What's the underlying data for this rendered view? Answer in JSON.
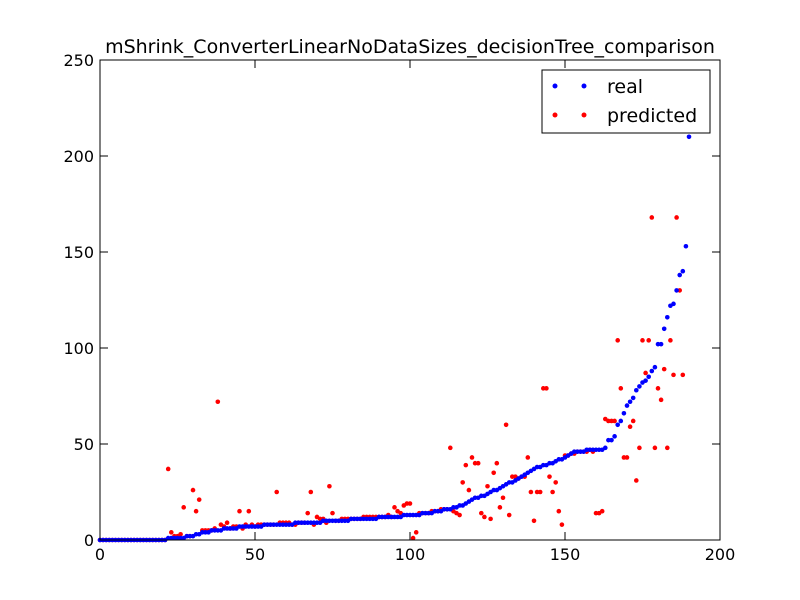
{
  "chart_data": {
    "type": "scatter",
    "title": "mShrink_ConverterLinearNoDataSizes_decisionTree_comparison",
    "xlabel": "",
    "ylabel": "",
    "xlim": [
      0,
      200
    ],
    "ylim": [
      0,
      250
    ],
    "x_ticks": [
      "0",
      "50",
      "100",
      "150",
      "200"
    ],
    "y_ticks": [
      "0",
      "50",
      "100",
      "150",
      "200",
      "250"
    ],
    "grid": false,
    "legend_position": "top-right",
    "colors": {
      "real": "#0000ff",
      "predicted": "#ff0000"
    },
    "series": [
      {
        "name": "real",
        "values": [
          0,
          0,
          0,
          0,
          0,
          0,
          0,
          0,
          0,
          0,
          0,
          0,
          0,
          0,
          0,
          0,
          0,
          0,
          0,
          0,
          0,
          0,
          1,
          1,
          1,
          1,
          1,
          1,
          2,
          2,
          2,
          3,
          3,
          4,
          4,
          4,
          5,
          5,
          5,
          5,
          6,
          6,
          6,
          6,
          6,
          7,
          7,
          7,
          7,
          7,
          7,
          7,
          7,
          8,
          8,
          8,
          8,
          8,
          8,
          8,
          8,
          8,
          8,
          9,
          9,
          9,
          9,
          9,
          9,
          9,
          9,
          9,
          10,
          10,
          10,
          10,
          10,
          10,
          10,
          10,
          10,
          11,
          11,
          11,
          11,
          11,
          11,
          11,
          11,
          11,
          12,
          12,
          12,
          12,
          12,
          12,
          12,
          12,
          13,
          13,
          13,
          13,
          13,
          13,
          14,
          14,
          14,
          14,
          15,
          15,
          15,
          16,
          16,
          16,
          17,
          17,
          18,
          18,
          19,
          20,
          21,
          22,
          22,
          23,
          23,
          24,
          25,
          26,
          26,
          27,
          28,
          29,
          30,
          30,
          31,
          32,
          33,
          34,
          35,
          36,
          37,
          38,
          38,
          39,
          39,
          40,
          40,
          41,
          42,
          42,
          43,
          44,
          45,
          46,
          46,
          46,
          46,
          47,
          47,
          47,
          47,
          47,
          47,
          48,
          52,
          52,
          54,
          60,
          62,
          66,
          70,
          72,
          74,
          78,
          80,
          82,
          83,
          85,
          88,
          90,
          102,
          102,
          110,
          116,
          122,
          123,
          130,
          138,
          140,
          153,
          210
        ]
      },
      {
        "name": "predicted",
        "values": [
          0,
          0,
          0,
          0,
          0,
          0,
          0,
          0,
          0,
          0,
          0,
          0,
          0,
          0,
          0,
          0,
          0,
          0,
          0,
          0,
          0,
          0,
          37,
          4,
          2,
          2,
          3,
          17,
          2,
          2,
          26,
          15,
          21,
          5,
          5,
          5,
          5,
          6,
          72,
          8,
          7,
          9,
          6,
          7,
          7,
          15,
          6,
          8,
          15,
          8,
          7,
          8,
          8,
          8,
          8,
          8,
          8,
          25,
          9,
          9,
          9,
          9,
          8,
          8,
          9,
          9,
          9,
          14,
          25,
          8,
          12,
          11,
          11,
          9,
          28,
          14,
          10,
          10,
          11,
          11,
          11,
          11,
          11,
          11,
          11,
          12,
          12,
          12,
          12,
          12,
          12,
          12,
          12,
          13,
          12,
          17,
          15,
          14,
          18,
          19,
          19,
          1,
          4,
          14,
          14,
          14,
          14,
          15,
          15,
          15,
          16,
          16,
          16,
          48,
          15,
          14,
          13,
          30,
          39,
          26,
          43,
          40,
          40,
          14,
          12,
          28,
          11,
          35,
          40,
          17,
          22,
          60,
          13,
          33,
          33,
          32,
          33,
          33,
          43,
          25,
          10,
          25,
          25,
          79,
          79,
          33,
          25,
          30,
          15,
          8,
          44,
          44,
          45,
          45,
          46,
          46,
          46,
          46,
          47,
          46,
          14,
          14,
          15,
          63,
          62,
          62,
          62,
          104,
          79,
          43,
          43,
          59,
          62,
          31,
          48,
          104,
          87,
          104,
          168,
          48,
          79,
          73,
          89,
          48,
          104,
          86,
          168,
          130,
          86
        ]
      }
    ]
  }
}
